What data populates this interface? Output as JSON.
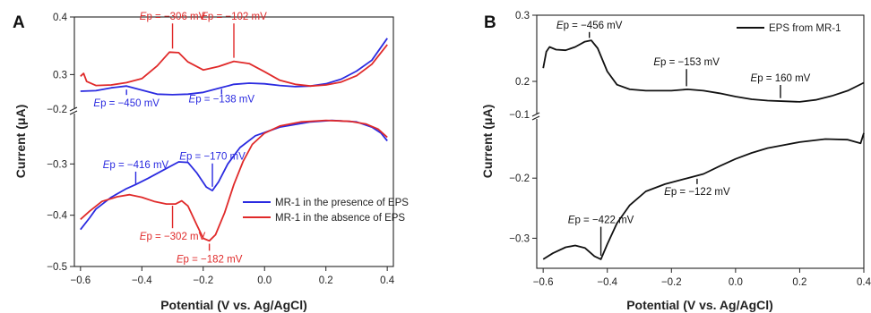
{
  "colors": {
    "present": "#2b2be0",
    "absent": "#e02a2a",
    "eps": "#111111",
    "axis": "#222222"
  },
  "chart_data": [
    {
      "panel": "A",
      "type": "line",
      "xlabel": "Potential (V vs. Ag/AgCl)",
      "ylabel": "Current (μA)",
      "xlim": [
        -0.62,
        0.42
      ],
      "xticks": [
        "-0.6",
        "-0.4",
        "-0.2",
        "0.0",
        "0.2",
        "0.4"
      ],
      "broken_axis": true,
      "upper_segment": {
        "ylim": [
          0.24,
          0.4
        ],
        "yticks": [
          "0.4",
          "0.3"
        ],
        "break_label": "-0.2"
      },
      "lower_segment": {
        "ylim": [
          -0.5,
          -0.2
        ],
        "yticks": [
          "-0.3",
          "-0.4",
          "-0.5"
        ]
      },
      "legend_position": "bottom-right",
      "series": [
        {
          "name": "MR-1 in the presence of EPS",
          "color_key": "present",
          "upper": [
            [
              -0.6,
              0.271
            ],
            [
              -0.55,
              0.272
            ],
            [
              -0.5,
              0.277
            ],
            [
              -0.45,
              0.28
            ],
            [
              -0.4,
              0.273
            ],
            [
              -0.35,
              0.266
            ],
            [
              -0.3,
              0.265
            ],
            [
              -0.25,
              0.266
            ],
            [
              -0.2,
              0.269
            ],
            [
              -0.15,
              0.276
            ],
            [
              -0.1,
              0.283
            ],
            [
              -0.05,
              0.285
            ],
            [
              0.0,
              0.284
            ],
            [
              0.05,
              0.281
            ],
            [
              0.1,
              0.279
            ],
            [
              0.15,
              0.28
            ],
            [
              0.2,
              0.284
            ],
            [
              0.25,
              0.292
            ],
            [
              0.3,
              0.306
            ],
            [
              0.35,
              0.325
            ],
            [
              0.4,
              0.363
            ]
          ],
          "lower": [
            [
              -0.6,
              -0.428
            ],
            [
              -0.57,
              -0.405
            ],
            [
              -0.55,
              -0.388
            ],
            [
              -0.5,
              -0.365
            ],
            [
              -0.45,
              -0.348
            ],
            [
              -0.42,
              -0.34
            ],
            [
              -0.38,
              -0.328
            ],
            [
              -0.33,
              -0.312
            ],
            [
              -0.28,
              -0.296
            ],
            [
              -0.25,
              -0.297
            ],
            [
              -0.22,
              -0.318
            ],
            [
              -0.19,
              -0.345
            ],
            [
              -0.17,
              -0.352
            ],
            [
              -0.15,
              -0.335
            ],
            [
              -0.12,
              -0.3
            ],
            [
              -0.08,
              -0.268
            ],
            [
              -0.03,
              -0.245
            ],
            [
              0.05,
              -0.228
            ],
            [
              0.15,
              -0.218
            ],
            [
              0.22,
              -0.215
            ],
            [
              0.3,
              -0.218
            ],
            [
              0.35,
              -0.228
            ],
            [
              0.38,
              -0.24
            ],
            [
              0.4,
              -0.255
            ]
          ]
        },
        {
          "name": "MR-1 in the absence of EPS",
          "color_key": "absent",
          "upper": [
            [
              -0.6,
              0.297
            ],
            [
              -0.59,
              0.302
            ],
            [
              -0.58,
              0.288
            ],
            [
              -0.55,
              0.281
            ],
            [
              -0.5,
              0.282
            ],
            [
              -0.45,
              0.286
            ],
            [
              -0.4,
              0.293
            ],
            [
              -0.35,
              0.315
            ],
            [
              -0.31,
              0.339
            ],
            [
              -0.28,
              0.338
            ],
            [
              -0.25,
              0.322
            ],
            [
              -0.2,
              0.308
            ],
            [
              -0.15,
              0.314
            ],
            [
              -0.1,
              0.323
            ],
            [
              -0.05,
              0.319
            ],
            [
              0.0,
              0.305
            ],
            [
              0.05,
              0.29
            ],
            [
              0.1,
              0.283
            ],
            [
              0.15,
              0.28
            ],
            [
              0.2,
              0.282
            ],
            [
              0.25,
              0.287
            ],
            [
              0.3,
              0.298
            ],
            [
              0.35,
              0.318
            ],
            [
              0.4,
              0.352
            ]
          ],
          "lower": [
            [
              -0.6,
              -0.408
            ],
            [
              -0.57,
              -0.392
            ],
            [
              -0.53,
              -0.373
            ],
            [
              -0.48,
              -0.364
            ],
            [
              -0.44,
              -0.36
            ],
            [
              -0.4,
              -0.365
            ],
            [
              -0.36,
              -0.373
            ],
            [
              -0.32,
              -0.378
            ],
            [
              -0.29,
              -0.378
            ],
            [
              -0.27,
              -0.372
            ],
            [
              -0.25,
              -0.382
            ],
            [
              -0.22,
              -0.42
            ],
            [
              -0.2,
              -0.445
            ],
            [
              -0.18,
              -0.45
            ],
            [
              -0.16,
              -0.438
            ],
            [
              -0.13,
              -0.395
            ],
            [
              -0.1,
              -0.34
            ],
            [
              -0.07,
              -0.295
            ],
            [
              -0.04,
              -0.262
            ],
            [
              0.0,
              -0.24
            ],
            [
              0.05,
              -0.226
            ],
            [
              0.12,
              -0.218
            ],
            [
              0.2,
              -0.215
            ],
            [
              0.28,
              -0.217
            ],
            [
              0.33,
              -0.222
            ],
            [
              0.37,
              -0.232
            ],
            [
              0.4,
              -0.248
            ]
          ]
        }
      ],
      "annotations": [
        {
          "text": "Ep = −306 mV",
          "color_key": "absent",
          "x": -0.3,
          "segment": "upper",
          "y": 0.342,
          "label_y": 0.395,
          "label_side": "above"
        },
        {
          "text": "Ep = −102 mV",
          "color_key": "absent",
          "x": -0.1,
          "segment": "upper",
          "y": 0.326,
          "label_y": 0.395,
          "label_side": "above"
        },
        {
          "text": "Ep = −450 mV",
          "color_key": "present",
          "x": -0.45,
          "segment": "upper",
          "y": 0.277,
          "label_y": 0.245,
          "label_side": "below"
        },
        {
          "text": "Ep = −138 mV",
          "color_key": "present",
          "x": -0.14,
          "segment": "upper",
          "y": 0.278,
          "label_y": 0.252,
          "label_side": "below"
        },
        {
          "text": "Ep = −416 mV",
          "color_key": "present",
          "x": -0.42,
          "segment": "lower",
          "y": -0.343,
          "label_y": -0.308,
          "label_side": "above"
        },
        {
          "text": "Ep = −170 mV",
          "color_key": "present",
          "x": -0.17,
          "segment": "lower",
          "y": -0.348,
          "label_y": -0.292,
          "label_side": "above"
        },
        {
          "text": "Ep = −302 mV",
          "color_key": "absent",
          "x": -0.3,
          "segment": "lower",
          "y": -0.378,
          "label_y": -0.448,
          "label_side": "below"
        },
        {
          "text": "Ep = −182 mV",
          "color_key": "absent",
          "x": -0.18,
          "segment": "lower",
          "y": -0.452,
          "label_y": -0.492,
          "label_side": "below"
        }
      ]
    },
    {
      "panel": "B",
      "type": "line",
      "xlabel": "Potential (V vs. Ag/AgCl)",
      "ylabel": "Current (μA)",
      "xlim": [
        -0.62,
        0.4
      ],
      "xticks": [
        "-0.6",
        "-0.4",
        "-0.2",
        "0.0",
        "0.2",
        "0.4"
      ],
      "broken_axis": true,
      "upper_segment": {
        "ylim": [
          0.15,
          0.3
        ],
        "yticks": [
          "0.3",
          "0.2"
        ],
        "break_label": "-0.1"
      },
      "lower_segment": {
        "ylim": [
          -0.35,
          -0.1
        ],
        "yticks": [
          "-0.2",
          "-0.3"
        ]
      },
      "legend_position": "top-right",
      "series": [
        {
          "name": "EPS from MR-1",
          "color_key": "eps",
          "upper": [
            [
              -0.6,
              0.22
            ],
            [
              -0.59,
              0.245
            ],
            [
              -0.58,
              0.252
            ],
            [
              -0.56,
              0.248
            ],
            [
              -0.53,
              0.247
            ],
            [
              -0.5,
              0.252
            ],
            [
              -0.47,
              0.26
            ],
            [
              -0.45,
              0.262
            ],
            [
              -0.43,
              0.25
            ],
            [
              -0.4,
              0.215
            ],
            [
              -0.37,
              0.195
            ],
            [
              -0.33,
              0.188
            ],
            [
              -0.28,
              0.186
            ],
            [
              -0.2,
              0.186
            ],
            [
              -0.15,
              0.188
            ],
            [
              -0.1,
              0.186
            ],
            [
              -0.05,
              0.182
            ],
            [
              0.0,
              0.177
            ],
            [
              0.05,
              0.173
            ],
            [
              0.1,
              0.171
            ],
            [
              0.15,
              0.17
            ],
            [
              0.2,
              0.169
            ],
            [
              0.25,
              0.172
            ],
            [
              0.3,
              0.178
            ],
            [
              0.35,
              0.186
            ],
            [
              0.4,
              0.198
            ]
          ],
          "lower": [
            [
              -0.6,
              -0.335
            ],
            [
              -0.57,
              -0.325
            ],
            [
              -0.53,
              -0.315
            ],
            [
              -0.5,
              -0.312
            ],
            [
              -0.47,
              -0.316
            ],
            [
              -0.44,
              -0.33
            ],
            [
              -0.42,
              -0.335
            ],
            [
              -0.4,
              -0.31
            ],
            [
              -0.37,
              -0.275
            ],
            [
              -0.33,
              -0.245
            ],
            [
              -0.28,
              -0.222
            ],
            [
              -0.22,
              -0.21
            ],
            [
              -0.15,
              -0.2
            ],
            [
              -0.1,
              -0.193
            ],
            [
              -0.05,
              -0.18
            ],
            [
              0.0,
              -0.168
            ],
            [
              0.05,
              -0.158
            ],
            [
              0.1,
              -0.15
            ],
            [
              0.15,
              -0.145
            ],
            [
              0.2,
              -0.14
            ],
            [
              0.28,
              -0.135
            ],
            [
              0.35,
              -0.136
            ],
            [
              0.39,
              -0.142
            ],
            [
              0.4,
              -0.125
            ]
          ]
        }
      ],
      "annotations": [
        {
          "text": "Ep = −456 mV",
          "color_key": "eps",
          "x": -0.456,
          "segment": "upper",
          "y": 0.263,
          "label_y": 0.28,
          "label_side": "above"
        },
        {
          "text": "Ep = −153 mV",
          "color_key": "eps",
          "x": -0.153,
          "segment": "upper",
          "y": 0.19,
          "label_y": 0.224,
          "label_side": "above"
        },
        {
          "text": "Ep = 160 mV",
          "color_key": "eps",
          "x": 0.14,
          "segment": "upper",
          "y": 0.172,
          "label_y": 0.2,
          "label_side": "above"
        },
        {
          "text": "Ep = −422 mV",
          "color_key": "eps",
          "x": -0.42,
          "segment": "lower",
          "y": -0.332,
          "label_y": -0.275,
          "label_side": "above"
        },
        {
          "text": "Ep = −122 mV",
          "color_key": "eps",
          "x": -0.12,
          "segment": "lower",
          "y": -0.198,
          "label_y": -0.228,
          "label_side": "below"
        }
      ]
    }
  ]
}
